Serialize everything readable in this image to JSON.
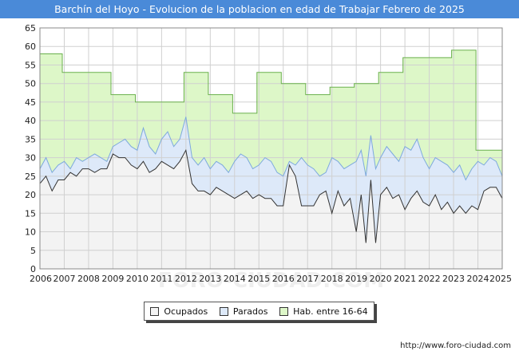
{
  "chart_data": {
    "type": "area",
    "title": "Barchín del Hoyo - Evolucion de la poblacion en edad de Trabajar Febrero de 2025",
    "xlabel": "",
    "ylabel": "",
    "ylim": [
      0,
      65
    ],
    "yticks": [
      0,
      5,
      10,
      15,
      20,
      25,
      30,
      35,
      40,
      45,
      50,
      55,
      60,
      65
    ],
    "xlim": [
      2006,
      2025
    ],
    "xticks": [
      2006,
      2007,
      2008,
      2009,
      2010,
      2011,
      2012,
      2013,
      2014,
      2015,
      2016,
      2017,
      2018,
      2019,
      2020,
      2021,
      2022,
      2023,
      2024,
      2025
    ],
    "grid": true,
    "legend": [
      "Ocupados",
      "Parados",
      "Hab. entre 16-64"
    ],
    "colors": {
      "ocupados_fill": "#f3f3f3",
      "parados_fill": "#dde9f9",
      "hab_fill": "#ddf7c8",
      "hab_line": "#6ab04c",
      "parados_line": "#7da9dd",
      "ocupados_line": "#333333"
    },
    "series": [
      {
        "name": "Hab. entre 16-64",
        "x": [
          2006.0,
          2006.92,
          2006.92,
          2008.92,
          2008.92,
          2009.92,
          2009.92,
          2011.92,
          2011.92,
          2012.92,
          2012.92,
          2013.92,
          2013.92,
          2014.92,
          2014.92,
          2015.92,
          2015.92,
          2016.92,
          2016.92,
          2017.92,
          2017.92,
          2018.92,
          2018.92,
          2019.92,
          2019.92,
          2020.92,
          2020.92,
          2022.92,
          2022.92,
          2023.92,
          2023.92,
          2025.0
        ],
        "values": [
          58,
          58,
          53,
          53,
          47,
          47,
          45,
          45,
          53,
          53,
          47,
          47,
          42,
          42,
          53,
          53,
          50,
          50,
          47,
          47,
          49,
          49,
          50,
          50,
          53,
          53,
          57,
          57,
          59,
          59,
          32,
          32
        ]
      },
      {
        "name": "Parados",
        "x": [
          2006.0,
          2006.25,
          2006.5,
          2006.75,
          2007.0,
          2007.25,
          2007.5,
          2007.75,
          2008.0,
          2008.25,
          2008.5,
          2008.75,
          2009.0,
          2009.25,
          2009.5,
          2009.75,
          2010.0,
          2010.25,
          2010.5,
          2010.75,
          2011.0,
          2011.25,
          2011.5,
          2011.75,
          2012.0,
          2012.25,
          2012.5,
          2012.75,
          2013.0,
          2013.25,
          2013.5,
          2013.75,
          2014.0,
          2014.25,
          2014.5,
          2014.75,
          2015.0,
          2015.25,
          2015.5,
          2015.75,
          2016.0,
          2016.25,
          2016.5,
          2016.75,
          2017.0,
          2017.25,
          2017.5,
          2017.75,
          2018.0,
          2018.25,
          2018.5,
          2018.75,
          2019.0,
          2019.2,
          2019.4,
          2019.6,
          2019.8,
          2020.0,
          2020.25,
          2020.5,
          2020.75,
          2021.0,
          2021.25,
          2021.5,
          2021.75,
          2022.0,
          2022.25,
          2022.5,
          2022.75,
          2023.0,
          2023.25,
          2023.5,
          2023.75,
          2024.0,
          2024.25,
          2024.5,
          2024.75,
          2025.0
        ],
        "values": [
          27,
          30,
          26,
          28,
          29,
          27,
          30,
          29,
          30,
          31,
          30,
          29,
          33,
          34,
          35,
          33,
          32,
          38,
          33,
          31,
          35,
          37,
          33,
          35,
          41,
          30,
          28,
          30,
          27,
          29,
          28,
          26,
          29,
          31,
          30,
          27,
          28,
          30,
          29,
          26,
          25,
          29,
          28,
          30,
          28,
          27,
          25,
          26,
          30,
          29,
          27,
          28,
          29,
          32,
          25,
          36,
          27,
          30,
          33,
          31,
          29,
          33,
          32,
          35,
          30,
          27,
          30,
          29,
          28,
          26,
          28,
          24,
          27,
          29,
          28,
          30,
          29,
          25
        ]
      },
      {
        "name": "Ocupados",
        "x": [
          2006.0,
          2006.25,
          2006.5,
          2006.75,
          2007.0,
          2007.25,
          2007.5,
          2007.75,
          2008.0,
          2008.25,
          2008.5,
          2008.75,
          2009.0,
          2009.25,
          2009.5,
          2009.75,
          2010.0,
          2010.25,
          2010.5,
          2010.75,
          2011.0,
          2011.25,
          2011.5,
          2011.75,
          2012.0,
          2012.25,
          2012.5,
          2012.75,
          2013.0,
          2013.25,
          2013.5,
          2013.75,
          2014.0,
          2014.25,
          2014.5,
          2014.75,
          2015.0,
          2015.25,
          2015.5,
          2015.75,
          2016.0,
          2016.25,
          2016.5,
          2016.75,
          2017.0,
          2017.25,
          2017.5,
          2017.75,
          2018.0,
          2018.25,
          2018.5,
          2018.75,
          2019.0,
          2019.2,
          2019.4,
          2019.6,
          2019.8,
          2020.0,
          2020.25,
          2020.5,
          2020.75,
          2021.0,
          2021.25,
          2021.5,
          2021.75,
          2022.0,
          2022.25,
          2022.5,
          2022.75,
          2023.0,
          2023.25,
          2023.5,
          2023.75,
          2024.0,
          2024.25,
          2024.5,
          2024.75,
          2025.0
        ],
        "values": [
          23,
          25,
          21,
          24,
          24,
          26,
          25,
          27,
          27,
          26,
          27,
          27,
          31,
          30,
          30,
          28,
          27,
          29,
          26,
          27,
          29,
          28,
          27,
          29,
          32,
          23,
          21,
          21,
          20,
          22,
          21,
          20,
          19,
          20,
          21,
          19,
          20,
          19,
          19,
          17,
          17,
          28,
          25,
          17,
          17,
          17,
          20,
          21,
          15,
          21,
          17,
          19,
          10,
          20,
          7,
          24,
          7,
          20,
          22,
          19,
          20,
          16,
          19,
          21,
          18,
          17,
          20,
          16,
          18,
          15,
          17,
          15,
          17,
          16,
          21,
          22,
          22,
          19
        ]
      }
    ],
    "watermark": "FORO-CIUDAD.COM",
    "source_url": "http://www.foro-ciudad.com"
  }
}
